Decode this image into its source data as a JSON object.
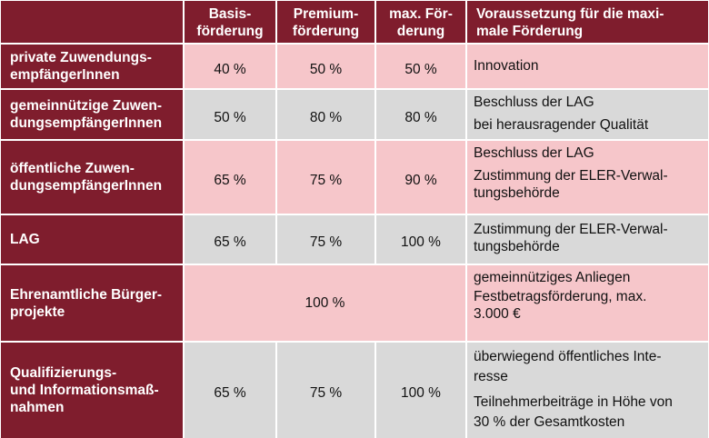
{
  "table": {
    "headers": [
      "",
      "Basis-\nförderung",
      "Premium-\nförderung",
      "max. För-\nderung",
      "Voraussetzung für die maxi-\nmale Förderung"
    ],
    "rows": [
      {
        "label": "private Zuwendungs-\nempfängerInnen",
        "values": [
          "40 %",
          "50 %",
          "50 %"
        ],
        "conditions": [
          "Innovation"
        ]
      },
      {
        "label": "gemeinnützige Zuwen-\ndungsempfängerInnen",
        "values": [
          "50 %",
          "80 %",
          "80 %"
        ],
        "conditions": [
          "Beschluss der LAG",
          "bei herausragender Qualität"
        ]
      },
      {
        "label": "öffentliche Zuwen-\ndungsempfängerInnen",
        "values": [
          "65 %",
          "75 %",
          "90 %"
        ],
        "conditions": [
          "Beschluss der LAG",
          "Zustimmung der ELER-Verwal-\ntungsbehörde"
        ]
      },
      {
        "label": "LAG",
        "values": [
          "65 %",
          "75 %",
          "100 %"
        ],
        "conditions": [
          "Zustimmung der ELER-Verwal-\ntungsbehörde"
        ]
      },
      {
        "label": "Ehrenamtliche Bürger-\nprojekte",
        "merged_value": "100 %",
        "conditions": [
          "gemeinnütziges Anliegen",
          "Festbetragsförderung, max.\n3.000 €"
        ]
      },
      {
        "label": "Qualifizierungs-\nund Informationsmaß-\nnahmen",
        "values": [
          "65 %",
          "75 %",
          "100 %"
        ],
        "conditions": [
          "überwiegend öffentliches Inte-\nresse",
          "Teilnehmerbeiträge in Höhe von\n30 % der Gesamtkosten"
        ]
      }
    ]
  },
  "colors": {
    "header": "#7f1d2d",
    "pink": "#f6c6ca",
    "gray": "#d9d9d9"
  }
}
